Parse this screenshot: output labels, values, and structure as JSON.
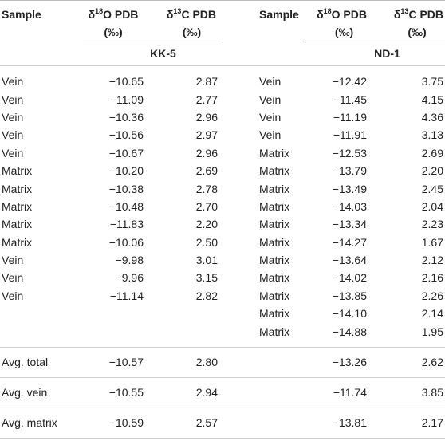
{
  "headers": {
    "sample": "Sample",
    "d18o_prefix": "δ",
    "d18o_sup": "18",
    "d18o_rest": "O PDB",
    "d13c_prefix": "δ",
    "d13c_sup": "13",
    "d13c_rest": "C PDB",
    "unit": "(‰)"
  },
  "site_left": "KK-5",
  "site_right": "ND-1",
  "rows": [
    {
      "l_s": "Vein",
      "l_o": "−10.65",
      "l_c": "2.87",
      "r_s": "Vein",
      "r_o": "−12.42",
      "r_c": "3.75"
    },
    {
      "l_s": "Vein",
      "l_o": "−11.09",
      "l_c": "2.77",
      "r_s": "Vein",
      "r_o": "−11.45",
      "r_c": "4.15"
    },
    {
      "l_s": "Vein",
      "l_o": "−10.36",
      "l_c": "2.96",
      "r_s": "Vein",
      "r_o": "−11.19",
      "r_c": "4.36"
    },
    {
      "l_s": "Vein",
      "l_o": "−10.56",
      "l_c": "2.97",
      "r_s": "Vein",
      "r_o": "−11.91",
      "r_c": "3.13"
    },
    {
      "l_s": "Vein",
      "l_o": "−10.67",
      "l_c": "2.96",
      "r_s": "Matrix",
      "r_o": "−12.53",
      "r_c": "2.69"
    },
    {
      "l_s": "Matrix",
      "l_o": "−10.20",
      "l_c": "2.69",
      "r_s": "Matrix",
      "r_o": "−13.79",
      "r_c": "2.20"
    },
    {
      "l_s": "Matrix",
      "l_o": "−10.38",
      "l_c": "2.78",
      "r_s": "Matrix",
      "r_o": "−13.49",
      "r_c": "2.45"
    },
    {
      "l_s": "Matrix",
      "l_o": "−10.48",
      "l_c": "2.70",
      "r_s": "Matrix",
      "r_o": "−14.03",
      "r_c": "2.04"
    },
    {
      "l_s": "Matrix",
      "l_o": "−11.83",
      "l_c": "2.20",
      "r_s": "Matrix",
      "r_o": "−13.34",
      "r_c": "2.23"
    },
    {
      "l_s": "Matrix",
      "l_o": "−10.06",
      "l_c": "2.50",
      "r_s": "Matrix",
      "r_o": "−14.27",
      "r_c": "1.67"
    },
    {
      "l_s": "Vein",
      "l_o": "−9.98",
      "l_c": "3.01",
      "r_s": "Matrix",
      "r_o": "−13.64",
      "r_c": "2.12"
    },
    {
      "l_s": "Vein",
      "l_o": "−9.96",
      "l_c": "3.15",
      "r_s": "Matrix",
      "r_o": "−14.02",
      "r_c": "2.16"
    },
    {
      "l_s": "Vein",
      "l_o": "−11.14",
      "l_c": "2.82",
      "r_s": "Matrix",
      "r_o": "−13.85",
      "r_c": "2.26"
    },
    {
      "l_s": "",
      "l_o": "",
      "l_c": "",
      "r_s": "Matrix",
      "r_o": "−14.10",
      "r_c": "2.14"
    },
    {
      "l_s": "",
      "l_o": "",
      "l_c": "",
      "r_s": "Matrix",
      "r_o": "−14.88",
      "r_c": "1.95"
    }
  ],
  "averages": [
    {
      "label": "Avg. total",
      "l_o": "−10.57",
      "l_c": "2.80",
      "r_o": "−13.26",
      "r_c": "2.62"
    },
    {
      "label": "Avg. vein",
      "l_o": "−10.55",
      "l_c": "2.94",
      "r_o": "−11.74",
      "r_c": "3.85"
    },
    {
      "label": "Avg. matrix",
      "l_o": "−10.59",
      "l_c": "2.57",
      "r_o": "−13.81",
      "r_c": "2.17"
    }
  ]
}
